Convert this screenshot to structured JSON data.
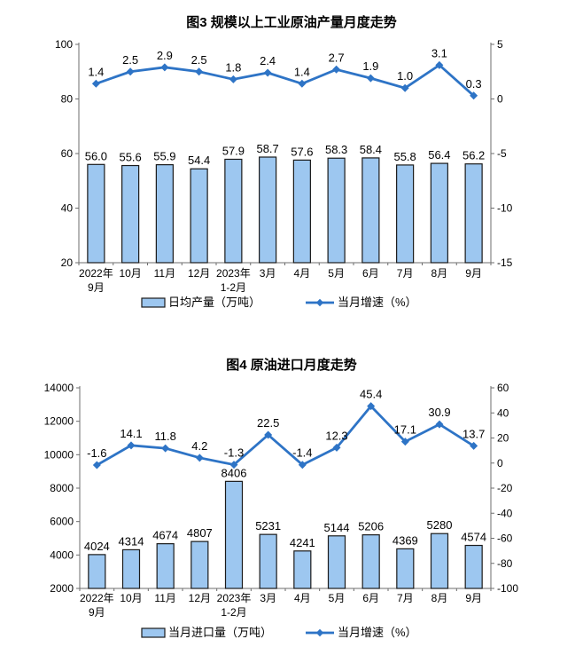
{
  "colors": {
    "bar_fill": "#9DC7F0",
    "bar_border": "#1A1A1A",
    "line": "#2E74C6",
    "axis": "#6E6E6E",
    "text": "#000000"
  },
  "chart_data": [
    {
      "type": "bar+line",
      "title": "图3 规模以上工业原油产量月度走势",
      "categories": [
        [
          "2022年",
          "9月"
        ],
        [
          "10月"
        ],
        [
          "11月"
        ],
        [
          "12月"
        ],
        [
          "2023年",
          "1-2月"
        ],
        [
          "3月"
        ],
        [
          "4月"
        ],
        [
          "5月"
        ],
        [
          "6月"
        ],
        [
          "7月"
        ],
        [
          "8月"
        ],
        [
          "9月"
        ]
      ],
      "bar_series": {
        "name": "日均产量（万吨）",
        "values": [
          56.0,
          55.6,
          55.9,
          54.4,
          57.9,
          58.7,
          57.6,
          58.3,
          58.4,
          55.8,
          56.4,
          56.2
        ],
        "labels": [
          "56.0",
          "55.6",
          "55.9",
          "54.4",
          "57.9",
          "58.7",
          "57.6",
          "58.3",
          "58.4",
          "55.8",
          "56.4",
          "56.2"
        ]
      },
      "line_series": {
        "name": "当月增速（%）",
        "values": [
          1.4,
          2.5,
          2.9,
          2.5,
          1.8,
          2.4,
          1.4,
          2.7,
          1.9,
          1.0,
          3.1,
          0.3
        ],
        "labels": [
          "1.4",
          "2.5",
          "2.9",
          "2.5",
          "1.8",
          "2.4",
          "1.4",
          "2.7",
          "1.9",
          "1.0",
          "3.1",
          "0.3"
        ]
      },
      "left_axis": {
        "min": 20,
        "max": 100,
        "step": 20
      },
      "right_axis": {
        "min": -15,
        "max": 5,
        "step": 5
      },
      "grid": false,
      "legend_position": "bottom"
    },
    {
      "type": "bar+line",
      "title": "图4 原油进口月度走势",
      "categories": [
        [
          "2022年",
          "9月"
        ],
        [
          "10月"
        ],
        [
          "11月"
        ],
        [
          "12月"
        ],
        [
          "2023年",
          "1-2月"
        ],
        [
          "3月"
        ],
        [
          "4月"
        ],
        [
          "5月"
        ],
        [
          "6月"
        ],
        [
          "7月"
        ],
        [
          "8月"
        ],
        [
          "9月"
        ]
      ],
      "bar_series": {
        "name": "当月进口量（万吨）",
        "values": [
          4024,
          4314,
          4674,
          4807,
          8406,
          5231,
          4241,
          5144,
          5206,
          4369,
          5280,
          4574
        ],
        "labels": [
          "4024",
          "4314",
          "4674",
          "4807",
          "8406",
          "5231",
          "4241",
          "5144",
          "5206",
          "4369",
          "5280",
          "4574"
        ]
      },
      "line_series": {
        "name": "当月增速（%）",
        "values": [
          -1.6,
          14.1,
          11.8,
          4.2,
          -1.3,
          22.5,
          -1.4,
          12.3,
          45.4,
          17.1,
          30.9,
          13.7
        ],
        "labels": [
          "-1.6",
          "14.1",
          "11.8",
          "4.2",
          "-1.3",
          "22.5",
          "-1.4",
          "12.3",
          "45.4",
          "17.1",
          "30.9",
          "13.7"
        ]
      },
      "left_axis": {
        "min": 2000,
        "max": 14000,
        "step": 2000
      },
      "right_axis": {
        "min": -100,
        "max": 60,
        "step": 20
      },
      "grid": false,
      "legend_position": "bottom"
    }
  ]
}
